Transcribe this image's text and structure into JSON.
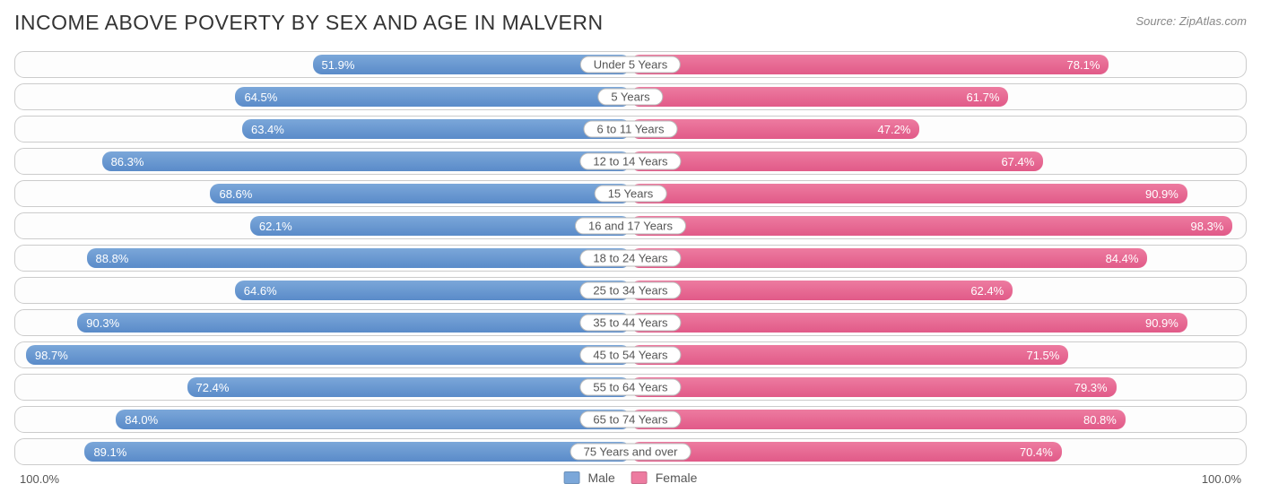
{
  "title": "INCOME ABOVE POVERTY BY SEX AND AGE IN MALVERN",
  "source": "Source: ZipAtlas.com",
  "chart": {
    "type": "diverging-bar",
    "axis_max_label": "100.0%",
    "male_color": "#7ba7d9",
    "male_border": "#5a8bc9",
    "female_color": "#ed7ba0",
    "female_border": "#e15a88",
    "row_border_color": "#cccccc",
    "row_bg": "#fdfdfd",
    "rows": [
      {
        "label": "Under 5 Years",
        "male": 51.9,
        "female": 78.1
      },
      {
        "label": "5 Years",
        "male": 64.5,
        "female": 61.7
      },
      {
        "label": "6 to 11 Years",
        "male": 63.4,
        "female": 47.2
      },
      {
        "label": "12 to 14 Years",
        "male": 86.3,
        "female": 67.4
      },
      {
        "label": "15 Years",
        "male": 68.6,
        "female": 90.9
      },
      {
        "label": "16 and 17 Years",
        "male": 62.1,
        "female": 98.3
      },
      {
        "label": "18 to 24 Years",
        "male": 88.8,
        "female": 84.4
      },
      {
        "label": "25 to 34 Years",
        "male": 64.6,
        "female": 62.4
      },
      {
        "label": "35 to 44 Years",
        "male": 90.3,
        "female": 90.9
      },
      {
        "label": "45 to 54 Years",
        "male": 98.7,
        "female": 71.5
      },
      {
        "label": "55 to 64 Years",
        "male": 72.4,
        "female": 79.3
      },
      {
        "label": "65 to 74 Years",
        "male": 84.0,
        "female": 80.8
      },
      {
        "label": "75 Years and over",
        "male": 89.1,
        "female": 70.4
      }
    ],
    "legend": {
      "male": "Male",
      "female": "Female"
    }
  }
}
